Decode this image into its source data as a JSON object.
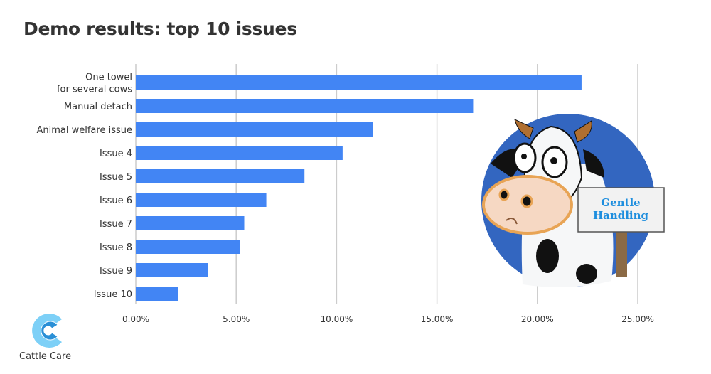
{
  "chart_data": {
    "type": "bar",
    "orientation": "horizontal",
    "title": "Demo results: top 10 issues",
    "categories": [
      [
        "One towel",
        "for several cows"
      ],
      [
        "Manual detach"
      ],
      [
        "Animal welfare issue"
      ],
      [
        "Issue 4"
      ],
      [
        "Issue 5"
      ],
      [
        "Issue 6"
      ],
      [
        "Issue 7"
      ],
      [
        "Issue 8"
      ],
      [
        "Issue 9"
      ],
      [
        "Issue 10"
      ]
    ],
    "values": [
      22.2,
      16.8,
      11.8,
      10.3,
      8.4,
      6.5,
      5.4,
      5.2,
      3.6,
      2.1
    ],
    "xlim": [
      0,
      25
    ],
    "xticks": [
      0,
      5,
      10,
      15,
      20,
      25
    ],
    "xtick_labels": [
      "0.00%",
      "5.00%",
      "10.00%",
      "15.00%",
      "20.00%",
      "25.00%"
    ],
    "grid": "vertical",
    "bar_color": "#4285f4"
  },
  "illustration": {
    "sign_text": [
      "Gentle",
      "Handling"
    ],
    "circle_color": "#3366c0"
  },
  "logo": {
    "text": "Cattle Care",
    "colors": [
      "#7dd0f7",
      "#2a8fd6"
    ]
  }
}
